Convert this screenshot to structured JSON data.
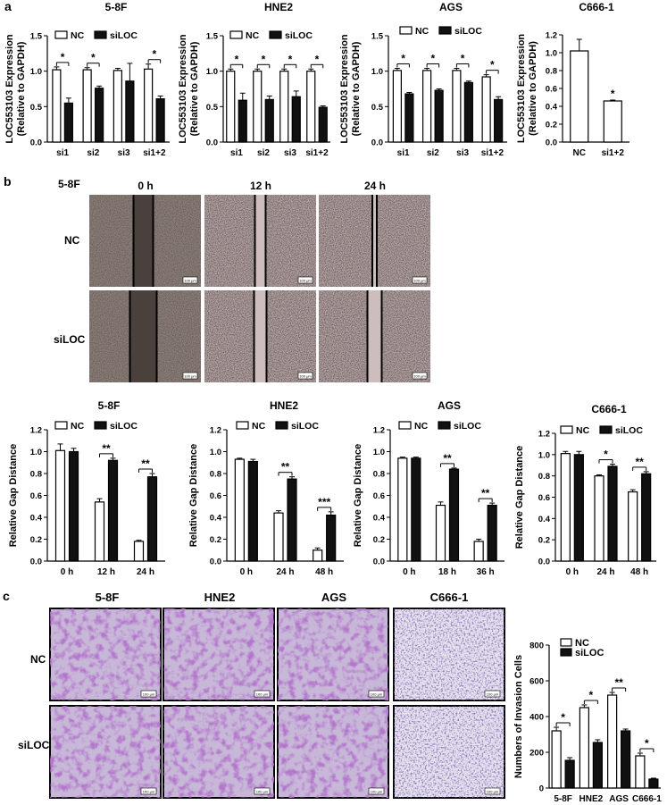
{
  "panel_labels": [
    "a",
    "b",
    "c"
  ],
  "legend": {
    "nc": "NC",
    "siloc": "siLOC"
  },
  "colors": {
    "nc_fill": "#ffffff",
    "siloc_fill": "#111111",
    "axis": "#000000",
    "scratch_bg": "#8f8178",
    "scratch_bg_later": "#b9a6a6",
    "scratch_gap": "#000000",
    "invasion_bg": "#c8b8d8",
    "invasion_cells": "#7a3b9e",
    "invasion_bg_c666": "#e8e2ef",
    "invasion_cells_c666": "#3d2f7a"
  },
  "panel_b": {
    "cell_line": "5-8F",
    "timepoints": [
      "0 h",
      "12 h",
      "24 h"
    ],
    "rows": [
      "NC",
      "siLOC"
    ],
    "scale_bar": "100 μm"
  },
  "panel_c": {
    "cell_lines": [
      "5-8F",
      "HNE2",
      "AGS",
      "C666-1"
    ],
    "rows": [
      "NC",
      "siLOC"
    ],
    "scale_bar": "100 μm"
  },
  "chart_data": [
    {
      "id": "a1",
      "type": "bar",
      "title": "5-8F",
      "ylabel": "LOC553103 Expression",
      "ylabel2": "(Relative to GAPDH)",
      "categories": [
        "si1",
        "si2",
        "si3",
        "si1+2"
      ],
      "ylim": [
        0,
        1.5
      ],
      "yticks": [
        "0.0",
        "0.5",
        "1.0",
        "1.5"
      ],
      "series": [
        {
          "name": "NC",
          "values": [
            1.02,
            1.02,
            1.01,
            1.03
          ],
          "errors": [
            0.04,
            0.03,
            0.03,
            0.07
          ]
        },
        {
          "name": "siLOC",
          "values": [
            0.55,
            0.76,
            0.86,
            0.61
          ],
          "errors": [
            0.07,
            0.03,
            0.25,
            0.04
          ]
        }
      ],
      "significance": [
        "*",
        "*",
        "",
        "*"
      ]
    },
    {
      "id": "a2",
      "type": "bar",
      "title": "HNE2",
      "ylabel": "LOC553103 Expression",
      "ylabel2": "(Relative to GAPDH)",
      "categories": [
        "si1",
        "si2",
        "si3",
        "si1+2"
      ],
      "ylim": [
        0,
        1.5
      ],
      "yticks": [
        "0.0",
        "0.5",
        "1.0",
        "1.5"
      ],
      "series": [
        {
          "name": "NC",
          "values": [
            1.0,
            1.0,
            1.0,
            1.0
          ],
          "errors": [
            0.03,
            0.03,
            0.03,
            0.03
          ]
        },
        {
          "name": "siLOC",
          "values": [
            0.59,
            0.6,
            0.64,
            0.49
          ],
          "errors": [
            0.1,
            0.05,
            0.08,
            0.02
          ]
        }
      ],
      "significance": [
        "*",
        "*",
        "*",
        "*"
      ]
    },
    {
      "id": "a3",
      "type": "bar",
      "title": "AGS",
      "ylabel": "LOC553103 Expression",
      "ylabel2": "(Relative to GAPDH)",
      "categories": [
        "si1",
        "si2",
        "si3",
        "si1+2"
      ],
      "ylim": [
        0,
        1.5
      ],
      "yticks": [
        "0.0",
        "0.5",
        "1.0",
        "1.5"
      ],
      "series": [
        {
          "name": "NC",
          "values": [
            1.01,
            1.01,
            1.01,
            0.92
          ],
          "errors": [
            0.03,
            0.03,
            0.03,
            0.03
          ]
        },
        {
          "name": "siLOC",
          "values": [
            0.68,
            0.73,
            0.84,
            0.6
          ],
          "errors": [
            0.02,
            0.02,
            0.02,
            0.04
          ]
        }
      ],
      "significance": [
        "*",
        "*",
        "*",
        "*"
      ]
    },
    {
      "id": "a4",
      "type": "bar",
      "title": "C666-1",
      "ylabel": "LOC553103 Expression",
      "ylabel2": "(Relative to GAPDH)",
      "categories": [
        "NC",
        "si1+2"
      ],
      "ylim": [
        0,
        1.2
      ],
      "yticks": [
        "0.0",
        "0.2",
        "0.4",
        "0.6",
        "0.8",
        "1.0",
        "1.2"
      ],
      "single": true,
      "values": [
        1.02,
        0.46
      ],
      "errors": [
        0.13,
        0.01
      ],
      "significance": [
        "",
        "*"
      ]
    },
    {
      "id": "b1",
      "type": "bar",
      "title": "5-8F",
      "ylabel": "Relative Gap Distance",
      "categories": [
        "0 h",
        "12 h",
        "24 h"
      ],
      "ylim": [
        0,
        1.2
      ],
      "yticks": [
        "0.0",
        "0.2",
        "0.4",
        "0.6",
        "0.8",
        "1.0",
        "1.2"
      ],
      "series": [
        {
          "name": "NC",
          "values": [
            1.01,
            0.54,
            0.18
          ],
          "errors": [
            0.06,
            0.03,
            0.01
          ]
        },
        {
          "name": "siLOC",
          "values": [
            1.0,
            0.92,
            0.77
          ],
          "errors": [
            0.03,
            0.02,
            0.03
          ]
        }
      ],
      "significance": [
        "",
        "**",
        "**"
      ]
    },
    {
      "id": "b2",
      "type": "bar",
      "title": "HNE2",
      "ylabel": "Relative Gap Distance",
      "categories": [
        "0 h",
        "24 h",
        "48 h"
      ],
      "ylim": [
        0,
        1.2
      ],
      "yticks": [
        "0.0",
        "0.2",
        "0.4",
        "0.6",
        "0.8",
        "1.0",
        "1.2"
      ],
      "series": [
        {
          "name": "NC",
          "values": [
            0.93,
            0.44,
            0.1
          ],
          "errors": [
            0.01,
            0.02,
            0.02
          ]
        },
        {
          "name": "siLOC",
          "values": [
            0.91,
            0.75,
            0.42
          ],
          "errors": [
            0.02,
            0.02,
            0.03
          ]
        }
      ],
      "significance": [
        "",
        "**",
        "***"
      ]
    },
    {
      "id": "b3",
      "type": "bar",
      "title": "AGS",
      "ylabel": "Relative Gap Distance",
      "categories": [
        "0 h",
        "18 h",
        "36 h"
      ],
      "ylim": [
        0,
        1.2
      ],
      "yticks": [
        "0.0",
        "0.2",
        "0.4",
        "0.6",
        "0.8",
        "1.0",
        "1.2"
      ],
      "series": [
        {
          "name": "NC",
          "values": [
            0.94,
            0.51,
            0.18
          ],
          "errors": [
            0.01,
            0.03,
            0.02
          ]
        },
        {
          "name": "siLOC",
          "values": [
            0.94,
            0.84,
            0.51
          ],
          "errors": [
            0.01,
            0.01,
            0.02
          ]
        }
      ],
      "significance": [
        "",
        "**",
        "**"
      ]
    },
    {
      "id": "b4",
      "type": "bar",
      "title": "C666-1",
      "ylabel": "Relative Gap Distance",
      "categories": [
        "0 h",
        "24 h",
        "48 h"
      ],
      "ylim": [
        0,
        1.2
      ],
      "yticks": [
        "0.0",
        "0.2",
        "0.4",
        "0.6",
        "0.8",
        "1.0",
        "1.2"
      ],
      "series": [
        {
          "name": "NC",
          "values": [
            1.01,
            0.8,
            0.65
          ],
          "errors": [
            0.02,
            0.01,
            0.02
          ]
        },
        {
          "name": "siLOC",
          "values": [
            1.0,
            0.89,
            0.82
          ],
          "errors": [
            0.03,
            0.02,
            0.02
          ]
        }
      ],
      "significance": [
        "",
        "*",
        "**"
      ]
    },
    {
      "id": "c1",
      "type": "bar",
      "title": "",
      "ylabel": "Numbers of Invasion Cells",
      "categories": [
        "5-8F",
        "HNE2",
        "AGS",
        "C666-1"
      ],
      "ylim": [
        0,
        800
      ],
      "yticks": [
        "0",
        "200",
        "400",
        "600",
        "800"
      ],
      "series": [
        {
          "name": "NC",
          "values": [
            320,
            450,
            520,
            180
          ],
          "errors": [
            20,
            15,
            15,
            15
          ]
        },
        {
          "name": "siLOC",
          "values": [
            155,
            255,
            320,
            50
          ],
          "errors": [
            15,
            15,
            10,
            5
          ]
        }
      ],
      "significance": [
        "*",
        "*",
        "**",
        "*"
      ]
    }
  ]
}
